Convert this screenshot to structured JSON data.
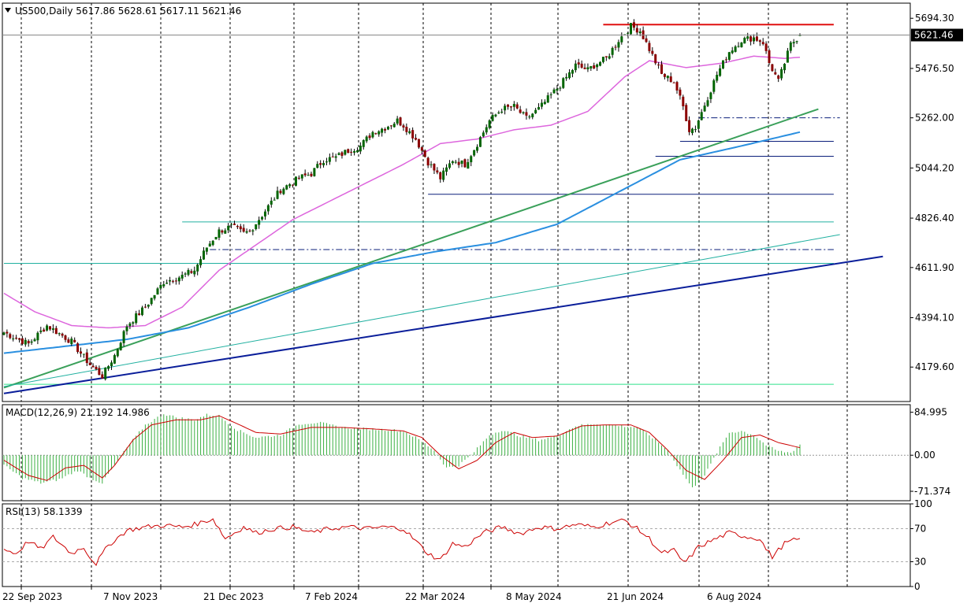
{
  "window": {
    "symbol_header": "US500,Daily  5617.86 5628.61 5617.11 5621.46",
    "current_price_label": "5621.46",
    "menu_arrow_icon": "triangle-down-icon"
  },
  "colors": {
    "background": "#ffffff",
    "frame": "#000000",
    "grid": "#000000",
    "candle_up": "#006400",
    "candle_down": "#8b0000",
    "wick": "#000000",
    "ma50": "#dd66dd",
    "ma200": "#2a8fe0",
    "resistance_red": "#e01010",
    "support_teal": "#20b0a0",
    "trend_green": "#3aa05a",
    "trend_navy": "#0a1e9a",
    "macd_hist": "#3cb043",
    "macd_signal": "#cc0000",
    "rsi_line": "#cc0000",
    "horizontal_levels": "#0a1e7a",
    "low_green": "#2ee08a"
  },
  "chart_data": [
    {
      "type": "candlestick",
      "panel": "price",
      "title": "US500,Daily",
      "ylim": [
        4030,
        5760
      ],
      "y_ticks": [
        "5694.30",
        "5476.50",
        "5262.00",
        "5044.20",
        "4826.40",
        "4611.90",
        "4394.10",
        "4179.60"
      ],
      "x_tick_labels": [
        "22 Sep 2023",
        "7 Nov 2023",
        "21 Dec 2023",
        "7 Feb 2024",
        "22 Mar 2024",
        "8 May 2024",
        "21 Jun 2024",
        "6 Aug 2024"
      ],
      "last": {
        "open": 5617.86,
        "high": 5628.61,
        "low": 5617.11,
        "close": 5621.46
      },
      "close_path_anchors": [
        [
          0,
          4330
        ],
        [
          8,
          4280
        ],
        [
          14,
          4360
        ],
        [
          22,
          4290
        ],
        [
          28,
          4190
        ],
        [
          32,
          4140
        ],
        [
          36,
          4230
        ],
        [
          40,
          4360
        ],
        [
          46,
          4440
        ],
        [
          52,
          4550
        ],
        [
          58,
          4575
        ],
        [
          62,
          4600
        ],
        [
          66,
          4700
        ],
        [
          70,
          4770
        ],
        [
          74,
          4790
        ],
        [
          78,
          4760
        ],
        [
          80,
          4770
        ],
        [
          84,
          4840
        ],
        [
          90,
          4950
        ],
        [
          96,
          5000
        ],
        [
          100,
          5020
        ],
        [
          104,
          5080
        ],
        [
          108,
          5090
        ],
        [
          112,
          5120
        ],
        [
          116,
          5140
        ],
        [
          120,
          5200
        ],
        [
          124,
          5220
        ],
        [
          128,
          5250
        ],
        [
          130,
          5230
        ],
        [
          134,
          5170
        ],
        [
          138,
          5070
        ],
        [
          142,
          5000
        ],
        [
          146,
          5080
        ],
        [
          150,
          5060
        ],
        [
          154,
          5150
        ],
        [
          158,
          5250
        ],
        [
          162,
          5300
        ],
        [
          166,
          5310
        ],
        [
          170,
          5260
        ],
        [
          174,
          5300
        ],
        [
          178,
          5360
        ],
        [
          182,
          5420
        ],
        [
          186,
          5490
        ],
        [
          190,
          5470
        ],
        [
          192,
          5490
        ],
        [
          196,
          5520
        ],
        [
          200,
          5600
        ],
        [
          204,
          5660
        ],
        [
          207,
          5640
        ],
        [
          210,
          5560
        ],
        [
          214,
          5450
        ],
        [
          218,
          5420
        ],
        [
          221,
          5310
        ],
        [
          223,
          5210
        ],
        [
          225,
          5220
        ],
        [
          228,
          5320
        ],
        [
          232,
          5450
        ],
        [
          236,
          5550
        ],
        [
          240,
          5600
        ],
        [
          244,
          5610
        ],
        [
          247,
          5590
        ],
        [
          249,
          5500
        ],
        [
          252,
          5420
        ],
        [
          256,
          5580
        ],
        [
          259,
          5621.46
        ]
      ],
      "ma50": [
        [
          0,
          4500
        ],
        [
          10,
          4420
        ],
        [
          22,
          4360
        ],
        [
          34,
          4350
        ],
        [
          46,
          4360
        ],
        [
          58,
          4440
        ],
        [
          70,
          4600
        ],
        [
          82,
          4710
        ],
        [
          94,
          4820
        ],
        [
          106,
          4900
        ],
        [
          118,
          4980
        ],
        [
          130,
          5060
        ],
        [
          142,
          5150
        ],
        [
          154,
          5170
        ],
        [
          166,
          5210
        ],
        [
          178,
          5230
        ],
        [
          190,
          5290
        ],
        [
          202,
          5440
        ],
        [
          210,
          5510
        ],
        [
          222,
          5480
        ],
        [
          234,
          5500
        ],
        [
          244,
          5530
        ],
        [
          254,
          5520
        ],
        [
          259,
          5525
        ]
      ],
      "ma200": [
        [
          0,
          4240
        ],
        [
          20,
          4270
        ],
        [
          40,
          4300
        ],
        [
          60,
          4350
        ],
        [
          80,
          4440
        ],
        [
          100,
          4540
        ],
        [
          120,
          4630
        ],
        [
          140,
          4680
        ],
        [
          160,
          4720
        ],
        [
          180,
          4800
        ],
        [
          200,
          4940
        ],
        [
          220,
          5080
        ],
        [
          240,
          5140
        ],
        [
          259,
          5200
        ]
      ],
      "horizontal_levels": [
        {
          "value": 5667,
          "start": 195,
          "end": 270,
          "style": "solid",
          "color": "resistance_red"
        },
        {
          "value": 5262,
          "start": 226,
          "end": 272,
          "style": "dashdot",
          "color": "horizontal_levels"
        },
        {
          "value": 5160,
          "start": 220,
          "end": 270,
          "style": "solid",
          "color": "horizontal_levels"
        },
        {
          "value": 5095,
          "start": 212,
          "end": 270,
          "style": "solid",
          "color": "horizontal_levels"
        },
        {
          "value": 4930,
          "start": 138,
          "end": 270,
          "style": "solid",
          "color": "horizontal_levels"
        },
        {
          "value": 4810,
          "start": 58,
          "end": 270,
          "style": "solid",
          "color": "support_teal"
        },
        {
          "value": 4690,
          "start": 67,
          "end": 270,
          "style": "dashdot",
          "color": "horizontal_levels"
        },
        {
          "value": 4630,
          "start": 0,
          "end": 270,
          "style": "solid",
          "color": "support_teal"
        },
        {
          "value": 4105,
          "start": 0,
          "end": 270,
          "style": "solid",
          "color": "low_green"
        }
      ],
      "trendlines": [
        {
          "from": [
            0,
            4090
          ],
          "to": [
            265,
            5300
          ],
          "color": "trend_green",
          "width": 2
        },
        {
          "from": [
            0,
            4095
          ],
          "to": [
            272,
            4755
          ],
          "color": "support_teal",
          "width": 1
        },
        {
          "from": [
            0,
            4065
          ],
          "to": [
            286,
            4660
          ],
          "color": "trend_navy",
          "width": 2
        }
      ]
    },
    {
      "type": "bar",
      "panel": "macd",
      "title": "MACD(12,26,9) 21.192 14.986",
      "ylim": [
        -90,
        100
      ],
      "y_ticks": [
        "84.995",
        "0.00",
        "-71.374"
      ],
      "histogram_anchors": [
        [
          0,
          -20
        ],
        [
          6,
          -45
        ],
        [
          12,
          -55
        ],
        [
          18,
          -48
        ],
        [
          24,
          -30
        ],
        [
          28,
          -45
        ],
        [
          32,
          -55
        ],
        [
          36,
          -20
        ],
        [
          40,
          15
        ],
        [
          46,
          60
        ],
        [
          52,
          82
        ],
        [
          56,
          75
        ],
        [
          62,
          70
        ],
        [
          66,
          80
        ],
        [
          70,
          78
        ],
        [
          76,
          50
        ],
        [
          82,
          35
        ],
        [
          90,
          40
        ],
        [
          96,
          62
        ],
        [
          102,
          65
        ],
        [
          110,
          55
        ],
        [
          118,
          52
        ],
        [
          126,
          50
        ],
        [
          130,
          48
        ],
        [
          134,
          35
        ],
        [
          140,
          10
        ],
        [
          144,
          -25
        ],
        [
          148,
          -20
        ],
        [
          152,
          0
        ],
        [
          158,
          40
        ],
        [
          162,
          50
        ],
        [
          168,
          38
        ],
        [
          174,
          30
        ],
        [
          180,
          38
        ],
        [
          186,
          58
        ],
        [
          192,
          62
        ],
        [
          198,
          60
        ],
        [
          206,
          55
        ],
        [
          210,
          40
        ],
        [
          216,
          10
        ],
        [
          219,
          -20
        ],
        [
          224,
          -65
        ],
        [
          228,
          -40
        ],
        [
          232,
          5
        ],
        [
          236,
          45
        ],
        [
          240,
          48
        ],
        [
          244,
          40
        ],
        [
          248,
          20
        ],
        [
          252,
          8
        ],
        [
          256,
          5
        ],
        [
          259,
          21.192
        ]
      ],
      "signal_anchors": [
        [
          0,
          -10
        ],
        [
          8,
          -40
        ],
        [
          14,
          -50
        ],
        [
          20,
          -25
        ],
        [
          26,
          -20
        ],
        [
          32,
          -45
        ],
        [
          36,
          -20
        ],
        [
          42,
          30
        ],
        [
          48,
          60
        ],
        [
          56,
          70
        ],
        [
          64,
          70
        ],
        [
          70,
          78
        ],
        [
          76,
          62
        ],
        [
          82,
          45
        ],
        [
          90,
          42
        ],
        [
          100,
          55
        ],
        [
          110,
          55
        ],
        [
          120,
          52
        ],
        [
          130,
          48
        ],
        [
          136,
          35
        ],
        [
          142,
          0
        ],
        [
          148,
          -27
        ],
        [
          154,
          -10
        ],
        [
          160,
          25
        ],
        [
          166,
          45
        ],
        [
          172,
          35
        ],
        [
          180,
          38
        ],
        [
          188,
          58
        ],
        [
          196,
          60
        ],
        [
          204,
          60
        ],
        [
          210,
          45
        ],
        [
          216,
          10
        ],
        [
          222,
          -30
        ],
        [
          228,
          -48
        ],
        [
          234,
          -10
        ],
        [
          240,
          35
        ],
        [
          246,
          40
        ],
        [
          252,
          25
        ],
        [
          259,
          14.986
        ]
      ]
    },
    {
      "type": "line",
      "panel": "rsi",
      "title": "RSI(13) 58.1339",
      "ylim": [
        0,
        100
      ],
      "y_ticks": [
        "100",
        "70",
        "30",
        "0"
      ],
      "levels": [
        70,
        30
      ],
      "rsi_anchors": [
        [
          0,
          45
        ],
        [
          4,
          40
        ],
        [
          8,
          55
        ],
        [
          12,
          45
        ],
        [
          16,
          60
        ],
        [
          22,
          40
        ],
        [
          26,
          48
        ],
        [
          28,
          35
        ],
        [
          30,
          28
        ],
        [
          34,
          50
        ],
        [
          40,
          68
        ],
        [
          46,
          72
        ],
        [
          52,
          74
        ],
        [
          58,
          72
        ],
        [
          62,
          75
        ],
        [
          68,
          82
        ],
        [
          72,
          58
        ],
        [
          78,
          72
        ],
        [
          82,
          65
        ],
        [
          88,
          70
        ],
        [
          94,
          72
        ],
        [
          100,
          65
        ],
        [
          106,
          70
        ],
        [
          112,
          72
        ],
        [
          118,
          70
        ],
        [
          124,
          72
        ],
        [
          130,
          70
        ],
        [
          134,
          55
        ],
        [
          138,
          40
        ],
        [
          142,
          32
        ],
        [
          146,
          52
        ],
        [
          150,
          48
        ],
        [
          156,
          65
        ],
        [
          162,
          72
        ],
        [
          168,
          64
        ],
        [
          174,
          72
        ],
        [
          180,
          70
        ],
        [
          186,
          75
        ],
        [
          192,
          72
        ],
        [
          198,
          78
        ],
        [
          202,
          80
        ],
        [
          206,
          70
        ],
        [
          210,
          58
        ],
        [
          214,
          40
        ],
        [
          218,
          44
        ],
        [
          220,
          33
        ],
        [
          222,
          30
        ],
        [
          226,
          48
        ],
        [
          230,
          55
        ],
        [
          236,
          65
        ],
        [
          242,
          60
        ],
        [
          246,
          58
        ],
        [
          248,
          45
        ],
        [
          250,
          36
        ],
        [
          254,
          52
        ],
        [
          259,
          58.1339
        ]
      ]
    }
  ]
}
